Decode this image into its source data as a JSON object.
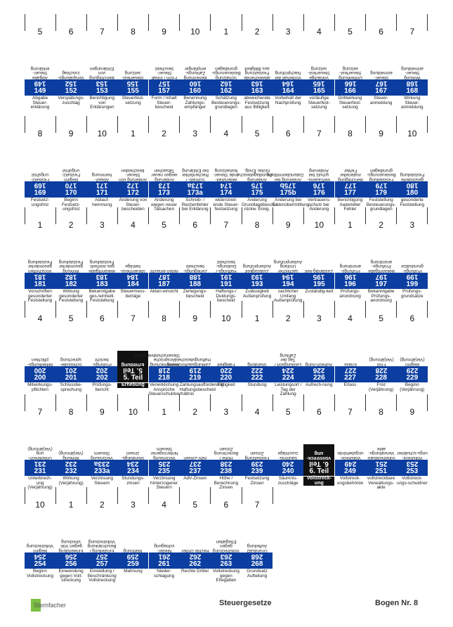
{
  "rows": [
    {
      "nums": [
        "5",
        "6",
        "7",
        "8",
        "9",
        "10",
        "1",
        "2",
        "3",
        "4",
        "5",
        "6",
        "7"
      ],
      "cells": [
        {
          "code": "149",
          "label": "Abgabe Steuer-erklärung"
        },
        {
          "code": "152",
          "label": "Verspätungs-zuschlag"
        },
        {
          "code": "153",
          "label": "Berichtigung von Erklärungen"
        },
        {
          "code": "155",
          "label": "Steuerfest-setzung"
        },
        {
          "code": "157",
          "label": "Form / Inhalt Steuer-bescheid"
        },
        {
          "code": "160",
          "label": "Benennung Zahlungs-empfänger"
        },
        {
          "code": "162",
          "label": "Schätzung Besteuerungs-grundlagen"
        },
        {
          "code": "163",
          "label": "abweichende Festsetzung aus Billigkeit"
        },
        {
          "code": "164",
          "label": "Vorbehalt der Nachprüfung"
        },
        {
          "code": "165",
          "label": "vorläufige Steuerfest-setzung"
        },
        {
          "code": "166",
          "label": "Drittwirkung Steuerfest-setzung"
        },
        {
          "code": "167",
          "label": "Steuer-anmeldung"
        },
        {
          "code": "168",
          "label": "Wirkung Steuer-anmeldung"
        }
      ]
    },
    {
      "nums": [
        "8",
        "9",
        "10",
        "1",
        "2",
        "3",
        "4",
        "5",
        "6",
        "7",
        "8",
        "9",
        "10"
      ],
      "cells": [
        {
          "code": "169",
          "label": "Festsetz-ungsfrist"
        },
        {
          "code": "170",
          "label": "Beginn Festsetz-ungsfrist"
        },
        {
          "code": "171",
          "label": "Ablauf-hemmung"
        },
        {
          "code": "172",
          "label": "Änderung von Steuer-bescheiden"
        },
        {
          "code": "173",
          "label": "Änderung wegen neuer Tatsachen"
        },
        {
          "code": "173a",
          "label": "Schreib- / Rechenfehler bei Erklärung"
        },
        {
          "code": "174",
          "label": "widerstreit-ende Steuer-festsetzung"
        },
        {
          "code": "175",
          "label": "Änderung Grundlagebesch./ rückw. Ereig."
        },
        {
          "code": "175b",
          "label": "Änderung bei Datenübermittlung"
        },
        {
          "code": "176",
          "label": "Vertrauens-schutz bei Änderung"
        },
        {
          "code": "177",
          "label": "Berichtigung materieller Fehler"
        },
        {
          "code": "179",
          "label": "Feststellung Besteuerungs-grundlagen"
        },
        {
          "code": "180",
          "label": "gesonderte Feststellung"
        }
      ]
    },
    {
      "nums": [
        "1",
        "2",
        "3",
        "4",
        "5",
        "6",
        "7",
        "8",
        "9",
        "10",
        "1",
        "2",
        "3"
      ],
      "cells": [
        {
          "code": "181",
          "label": "Vorschriften gesonderter Feststellung"
        },
        {
          "code": "182",
          "label": "Wirkung gesonderter Feststellung"
        },
        {
          "code": "183",
          "label": "Bekanntgabe ges./einheitl. Feststellung"
        },
        {
          "code": "184",
          "label": "Steuermess-beträge"
        },
        {
          "code": "187",
          "label": "Akten-einsicht"
        },
        {
          "code": "188",
          "label": "Zerlegungs-bescheid"
        },
        {
          "code": "191",
          "label": "Haftungs-/ Duldungs-bescheid"
        },
        {
          "code": "193",
          "label": "Zulässigkeit Außenprüfung"
        },
        {
          "code": "194",
          "label": "sachlicher Umfang Außenprüfung"
        },
        {
          "code": "195",
          "label": "Zuständig-keit"
        },
        {
          "code": "196",
          "label": "Prüfungs-anordnung"
        },
        {
          "code": "197",
          "label": "Bekanntgabe Prüfungs-anordnung"
        },
        {
          "code": "199",
          "label": "Prüfungs-grundsätze"
        }
      ]
    },
    {
      "nums": [
        "4",
        "5",
        "6",
        "7",
        "8",
        "9",
        "10",
        "1",
        "2",
        "3",
        "4",
        "5",
        "6"
      ],
      "cells": [
        {
          "code": "200",
          "label": "Mitwirkungs-pflichten"
        },
        {
          "code": "201",
          "label": "Schlussbe-sprechung"
        },
        {
          "code": "202",
          "label": "Prüfungs-bericht"
        },
        {
          "code": "5. Teil",
          "label": "Erhebung",
          "hl": true
        },
        {
          "code": "218",
          "label": "Verwirklichung Ansprüche Steuerschuldverhältnis"
        },
        {
          "code": "219",
          "label": "Zahlungsaufforderung Haftungsbescheid"
        },
        {
          "code": "220",
          "label": "Fälligkeit"
        },
        {
          "code": "222",
          "label": "Stundung"
        },
        {
          "code": "224",
          "label": "Leistungsort / Tag der Zahlung"
        },
        {
          "code": "226",
          "label": "Aufrech-nung"
        },
        {
          "code": "227",
          "label": "Erlass"
        },
        {
          "code": "228",
          "label": "Frist (Verjährung)"
        },
        {
          "code": "229",
          "label": "Beginn (Verjährung)"
        }
      ]
    },
    {
      "nums": [
        "7",
        "8",
        "9",
        "10",
        "1",
        "2",
        "3",
        "4",
        "5",
        "6",
        "7",
        "8",
        "9"
      ],
      "cells": [
        {
          "code": "231",
          "label": "Unterbrech-ung (Verjährung)"
        },
        {
          "code": "232",
          "label": "Wirkung (Verjährung)"
        },
        {
          "code": "233a",
          "label": "Verzinsung Steuern"
        },
        {
          "code": "234",
          "label": "Stundungs-zinsen"
        },
        {
          "code": "235",
          "label": "Verzinsung hinterzogener Steuern"
        },
        {
          "code": "237",
          "label": "AdV-Zinsen"
        },
        {
          "code": "238",
          "label": "Höhe / Berechnung Zinsen"
        },
        {
          "code": "239",
          "label": "Festsetzung Zinsen"
        },
        {
          "code": "240",
          "label": "Säumnis-zuschläge"
        },
        {
          "code": "6. Teil",
          "label": "Vollstreck-ung",
          "hl": true
        },
        {
          "code": "249",
          "label": "Vollstreck-ungsbehörde"
        },
        {
          "code": "251",
          "label": "vollstreckbare Verwaltungs-akte"
        },
        {
          "code": "253",
          "label": "Vollstreck-ungs-schuldner"
        }
      ]
    },
    {
      "nums": [
        "10",
        "1",
        "2",
        "3",
        "4",
        "5",
        "6",
        "7"
      ],
      "cells": [
        {
          "code": "254",
          "label": "Beginn Vollstreckung"
        },
        {
          "code": "256",
          "label": "Einwendung gegen Voll-streckung"
        },
        {
          "code": "257",
          "label": "Einstellung / Beschränkung Vollstreckung"
        },
        {
          "code": "259",
          "label": "Mahnung"
        },
        {
          "code": "261",
          "label": "Nieder-schlagung"
        },
        {
          "code": "262",
          "label": "Rechte Dritter"
        },
        {
          "code": "263",
          "label": "Vollstreckung gegen Ehegatten"
        },
        {
          "code": "268",
          "label": "Grundsatz Aufteilung"
        }
      ]
    }
  ],
  "footer": {
    "logo_text": "Stemfacher",
    "title": "Steuergesetze",
    "sheet": "Bogen Nr. 8"
  }
}
